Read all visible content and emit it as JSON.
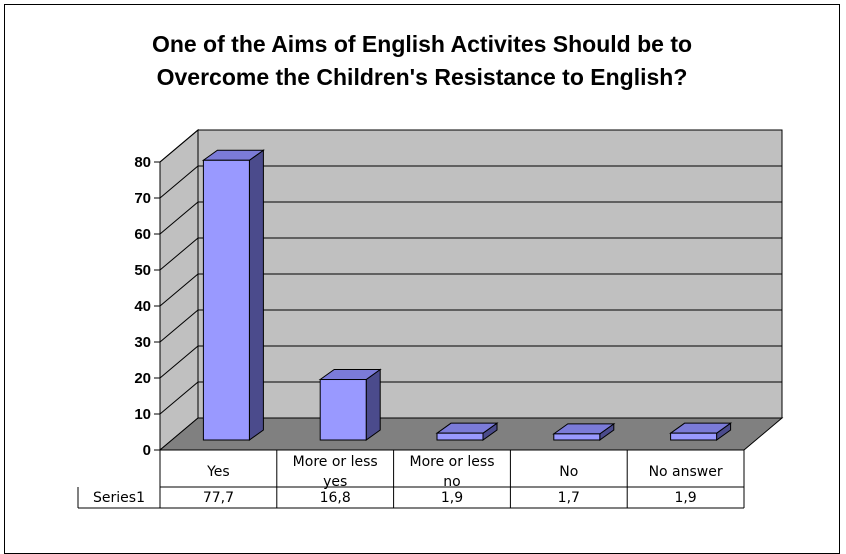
{
  "chart_data": {
    "type": "bar",
    "title_lines": [
      "One of the Aims of English Activites Should be to",
      "Overcome the Children's Resistance to English?"
    ],
    "categories": [
      [
        "Yes"
      ],
      [
        "More or less",
        "yes"
      ],
      [
        "More or less",
        "no"
      ],
      [
        "No"
      ],
      [
        "No answer"
      ]
    ],
    "series": [
      {
        "name": "Series1",
        "values": [
          77.7,
          16.8,
          1.9,
          1.7,
          1.9
        ],
        "value_labels": [
          "77,7",
          "16,8",
          "1,9",
          "1,7",
          "1,9"
        ]
      }
    ],
    "yticks": [
      "0",
      "10",
      "20",
      "30",
      "40",
      "50",
      "60",
      "70",
      "80"
    ],
    "ylim": [
      0,
      80
    ],
    "style": "3d-column",
    "grid": true,
    "data_table": true,
    "colors": {
      "bar_front": "#9999FF",
      "bar_side": "#4B4B8C",
      "bar_top": "#7B7BD8",
      "wall": "#C0C0C0",
      "floor": "#808080"
    }
  }
}
